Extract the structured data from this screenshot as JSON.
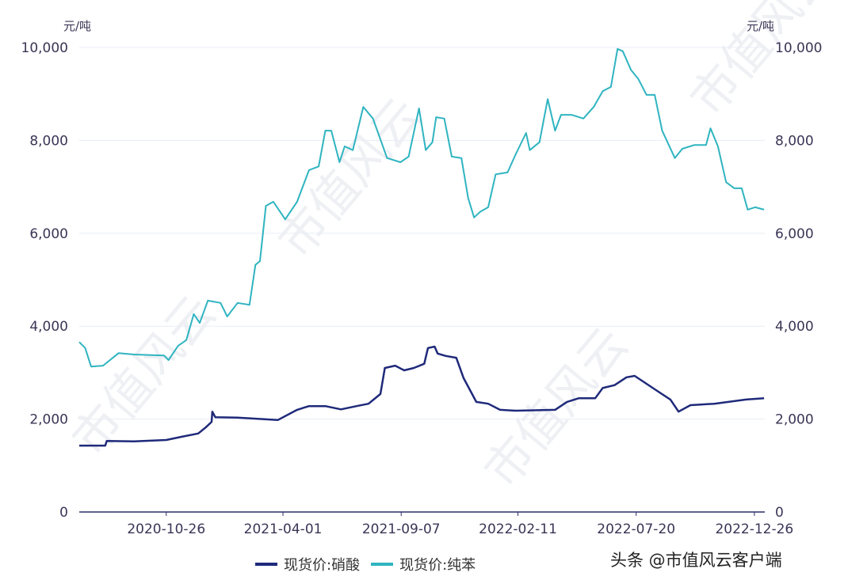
{
  "chart_data": {
    "type": "line",
    "title": "",
    "y_unit_left": "元/吨",
    "y_unit_right": "元/吨",
    "ylim": [
      0,
      10000
    ],
    "yticks": [
      "0",
      "2,000",
      "4,000",
      "6,000",
      "8,000",
      "10,000"
    ],
    "ytick_values": [
      0,
      2000,
      4000,
      6000,
      8000,
      10000
    ],
    "x_unit": "days since 2020-10-26",
    "xlim": [
      -117,
      805
    ],
    "xticks": [
      {
        "label": "2020-10-26",
        "x": 0
      },
      {
        "label": "2021-04-01",
        "x": 157
      },
      {
        "label": "2021-09-07",
        "x": 316
      },
      {
        "label": "2022-02-11",
        "x": 473
      },
      {
        "label": "2022-07-20",
        "x": 632
      },
      {
        "label": "2022-12-26",
        "x": 791
      }
    ],
    "grid": true,
    "legend_position": "bottom",
    "series": [
      {
        "name": "现货价:硝酸",
        "color": "#1f2a7a",
        "points": [
          [
            -117,
            1430
          ],
          [
            -82,
            1430
          ],
          [
            -80,
            1530
          ],
          [
            -43,
            1520
          ],
          [
            0,
            1550
          ],
          [
            21,
            1620
          ],
          [
            43,
            1690
          ],
          [
            53,
            1820
          ],
          [
            61,
            1940
          ],
          [
            62,
            2160
          ],
          [
            66,
            2040
          ],
          [
            96,
            2030
          ],
          [
            150,
            1980
          ],
          [
            176,
            2200
          ],
          [
            192,
            2280
          ],
          [
            214,
            2280
          ],
          [
            235,
            2210
          ],
          [
            256,
            2280
          ],
          [
            272,
            2330
          ],
          [
            288,
            2540
          ],
          [
            294,
            3100
          ],
          [
            308,
            3150
          ],
          [
            320,
            3050
          ],
          [
            333,
            3100
          ],
          [
            347,
            3190
          ],
          [
            352,
            3530
          ],
          [
            361,
            3560
          ],
          [
            365,
            3410
          ],
          [
            376,
            3360
          ],
          [
            390,
            3320
          ],
          [
            400,
            2880
          ],
          [
            417,
            2370
          ],
          [
            433,
            2330
          ],
          [
            449,
            2200
          ],
          [
            470,
            2180
          ],
          [
            523,
            2200
          ],
          [
            539,
            2370
          ],
          [
            555,
            2450
          ],
          [
            577,
            2450
          ],
          [
            587,
            2670
          ],
          [
            603,
            2730
          ],
          [
            619,
            2900
          ],
          [
            630,
            2930
          ],
          [
            646,
            2760
          ],
          [
            662,
            2590
          ],
          [
            678,
            2420
          ],
          [
            689,
            2160
          ],
          [
            705,
            2300
          ],
          [
            737,
            2330
          ],
          [
            780,
            2420
          ],
          [
            804,
            2450
          ]
        ]
      },
      {
        "name": "现货价:纯苯",
        "color": "#2fb4c0",
        "points": [
          [
            -117,
            3660
          ],
          [
            -109,
            3530
          ],
          [
            -101,
            3130
          ],
          [
            -85,
            3150
          ],
          [
            -64,
            3420
          ],
          [
            -43,
            3390
          ],
          [
            -3,
            3370
          ],
          [
            3,
            3270
          ],
          [
            16,
            3580
          ],
          [
            27,
            3700
          ],
          [
            37,
            4260
          ],
          [
            45,
            4070
          ],
          [
            56,
            4550
          ],
          [
            73,
            4500
          ],
          [
            82,
            4210
          ],
          [
            96,
            4500
          ],
          [
            112,
            4460
          ],
          [
            120,
            5320
          ],
          [
            126,
            5400
          ],
          [
            134,
            6590
          ],
          [
            144,
            6680
          ],
          [
            160,
            6300
          ],
          [
            176,
            6680
          ],
          [
            192,
            7360
          ],
          [
            205,
            7440
          ],
          [
            214,
            8210
          ],
          [
            222,
            8210
          ],
          [
            233,
            7530
          ],
          [
            240,
            7870
          ],
          [
            251,
            7790
          ],
          [
            265,
            8720
          ],
          [
            278,
            8470
          ],
          [
            297,
            7620
          ],
          [
            315,
            7530
          ],
          [
            326,
            7650
          ],
          [
            340,
            8690
          ],
          [
            349,
            7790
          ],
          [
            358,
            7960
          ],
          [
            363,
            8500
          ],
          [
            374,
            8470
          ],
          [
            384,
            7650
          ],
          [
            397,
            7620
          ],
          [
            406,
            6760
          ],
          [
            414,
            6340
          ],
          [
            422,
            6460
          ],
          [
            433,
            6560
          ],
          [
            443,
            7270
          ],
          [
            459,
            7310
          ],
          [
            470,
            7700
          ],
          [
            484,
            8160
          ],
          [
            489,
            7790
          ],
          [
            502,
            7960
          ],
          [
            513,
            8890
          ],
          [
            523,
            8210
          ],
          [
            531,
            8550
          ],
          [
            545,
            8550
          ],
          [
            561,
            8470
          ],
          [
            575,
            8720
          ],
          [
            587,
            9060
          ],
          [
            598,
            9150
          ],
          [
            607,
            9970
          ],
          [
            614,
            9920
          ],
          [
            625,
            9520
          ],
          [
            635,
            9320
          ],
          [
            646,
            8980
          ],
          [
            657,
            8980
          ],
          [
            667,
            8210
          ],
          [
            684,
            7620
          ],
          [
            694,
            7820
          ],
          [
            710,
            7900
          ],
          [
            726,
            7900
          ],
          [
            732,
            8260
          ],
          [
            742,
            7870
          ],
          [
            753,
            7100
          ],
          [
            764,
            6970
          ],
          [
            774,
            6970
          ],
          [
            782,
            6510
          ],
          [
            792,
            6560
          ],
          [
            804,
            6510
          ]
        ]
      }
    ]
  },
  "watermark": "头条 @市值风云客户端",
  "bg_watermark": "市值风云"
}
